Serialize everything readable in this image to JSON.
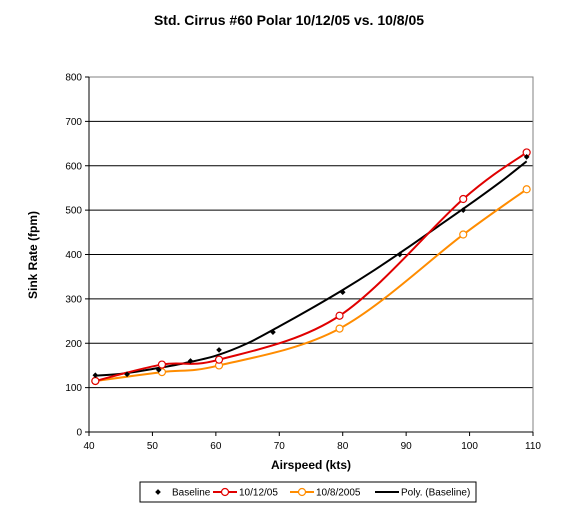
{
  "chart_data": {
    "type": "line",
    "title": "Std. Cirrus #60 Polar 10/12/05 vs. 10/8/05",
    "xlabel": "Airspeed (kts)",
    "ylabel": "Sink Rate (fpm)",
    "xlim": [
      40,
      110
    ],
    "ylim": [
      0,
      800
    ],
    "xticks": [
      40,
      50,
      60,
      70,
      80,
      90,
      100,
      110
    ],
    "yticks": [
      0,
      100,
      200,
      300,
      400,
      500,
      600,
      700,
      800
    ],
    "grid": "horizontal",
    "legend": "bottom",
    "series": [
      {
        "name": "Baseline",
        "style": "markers",
        "color": "#000000",
        "x": [
          41,
          46,
          51,
          56,
          60.5,
          69,
          80,
          89,
          99,
          109
        ],
        "y": [
          128,
          130,
          140,
          160,
          185,
          225,
          315,
          400,
          500,
          620
        ]
      },
      {
        "name": "10/12/05",
        "style": "line-open-marker",
        "color": "#e00000",
        "x": [
          41,
          51.5,
          60.5,
          79.5,
          99,
          109
        ],
        "y": [
          115,
          152,
          163,
          262,
          525,
          630
        ]
      },
      {
        "name": "10/8/2005",
        "style": "line-open-marker",
        "color": "#ff8c00",
        "x": [
          41,
          51.5,
          60.5,
          79.5,
          99,
          109
        ],
        "y": [
          115,
          135,
          150,
          233,
          445,
          547
        ]
      },
      {
        "name": "Poly. (Baseline)",
        "style": "line",
        "color": "#000000",
        "x": [
          41,
          45,
          50,
          55,
          60,
          65,
          70,
          75,
          80,
          85,
          90,
          95,
          100,
          105,
          109
        ],
        "y": [
          127,
          131,
          142,
          155,
          172,
          200,
          238,
          278,
          320,
          365,
          413,
          463,
          513,
          565,
          610
        ]
      }
    ]
  }
}
